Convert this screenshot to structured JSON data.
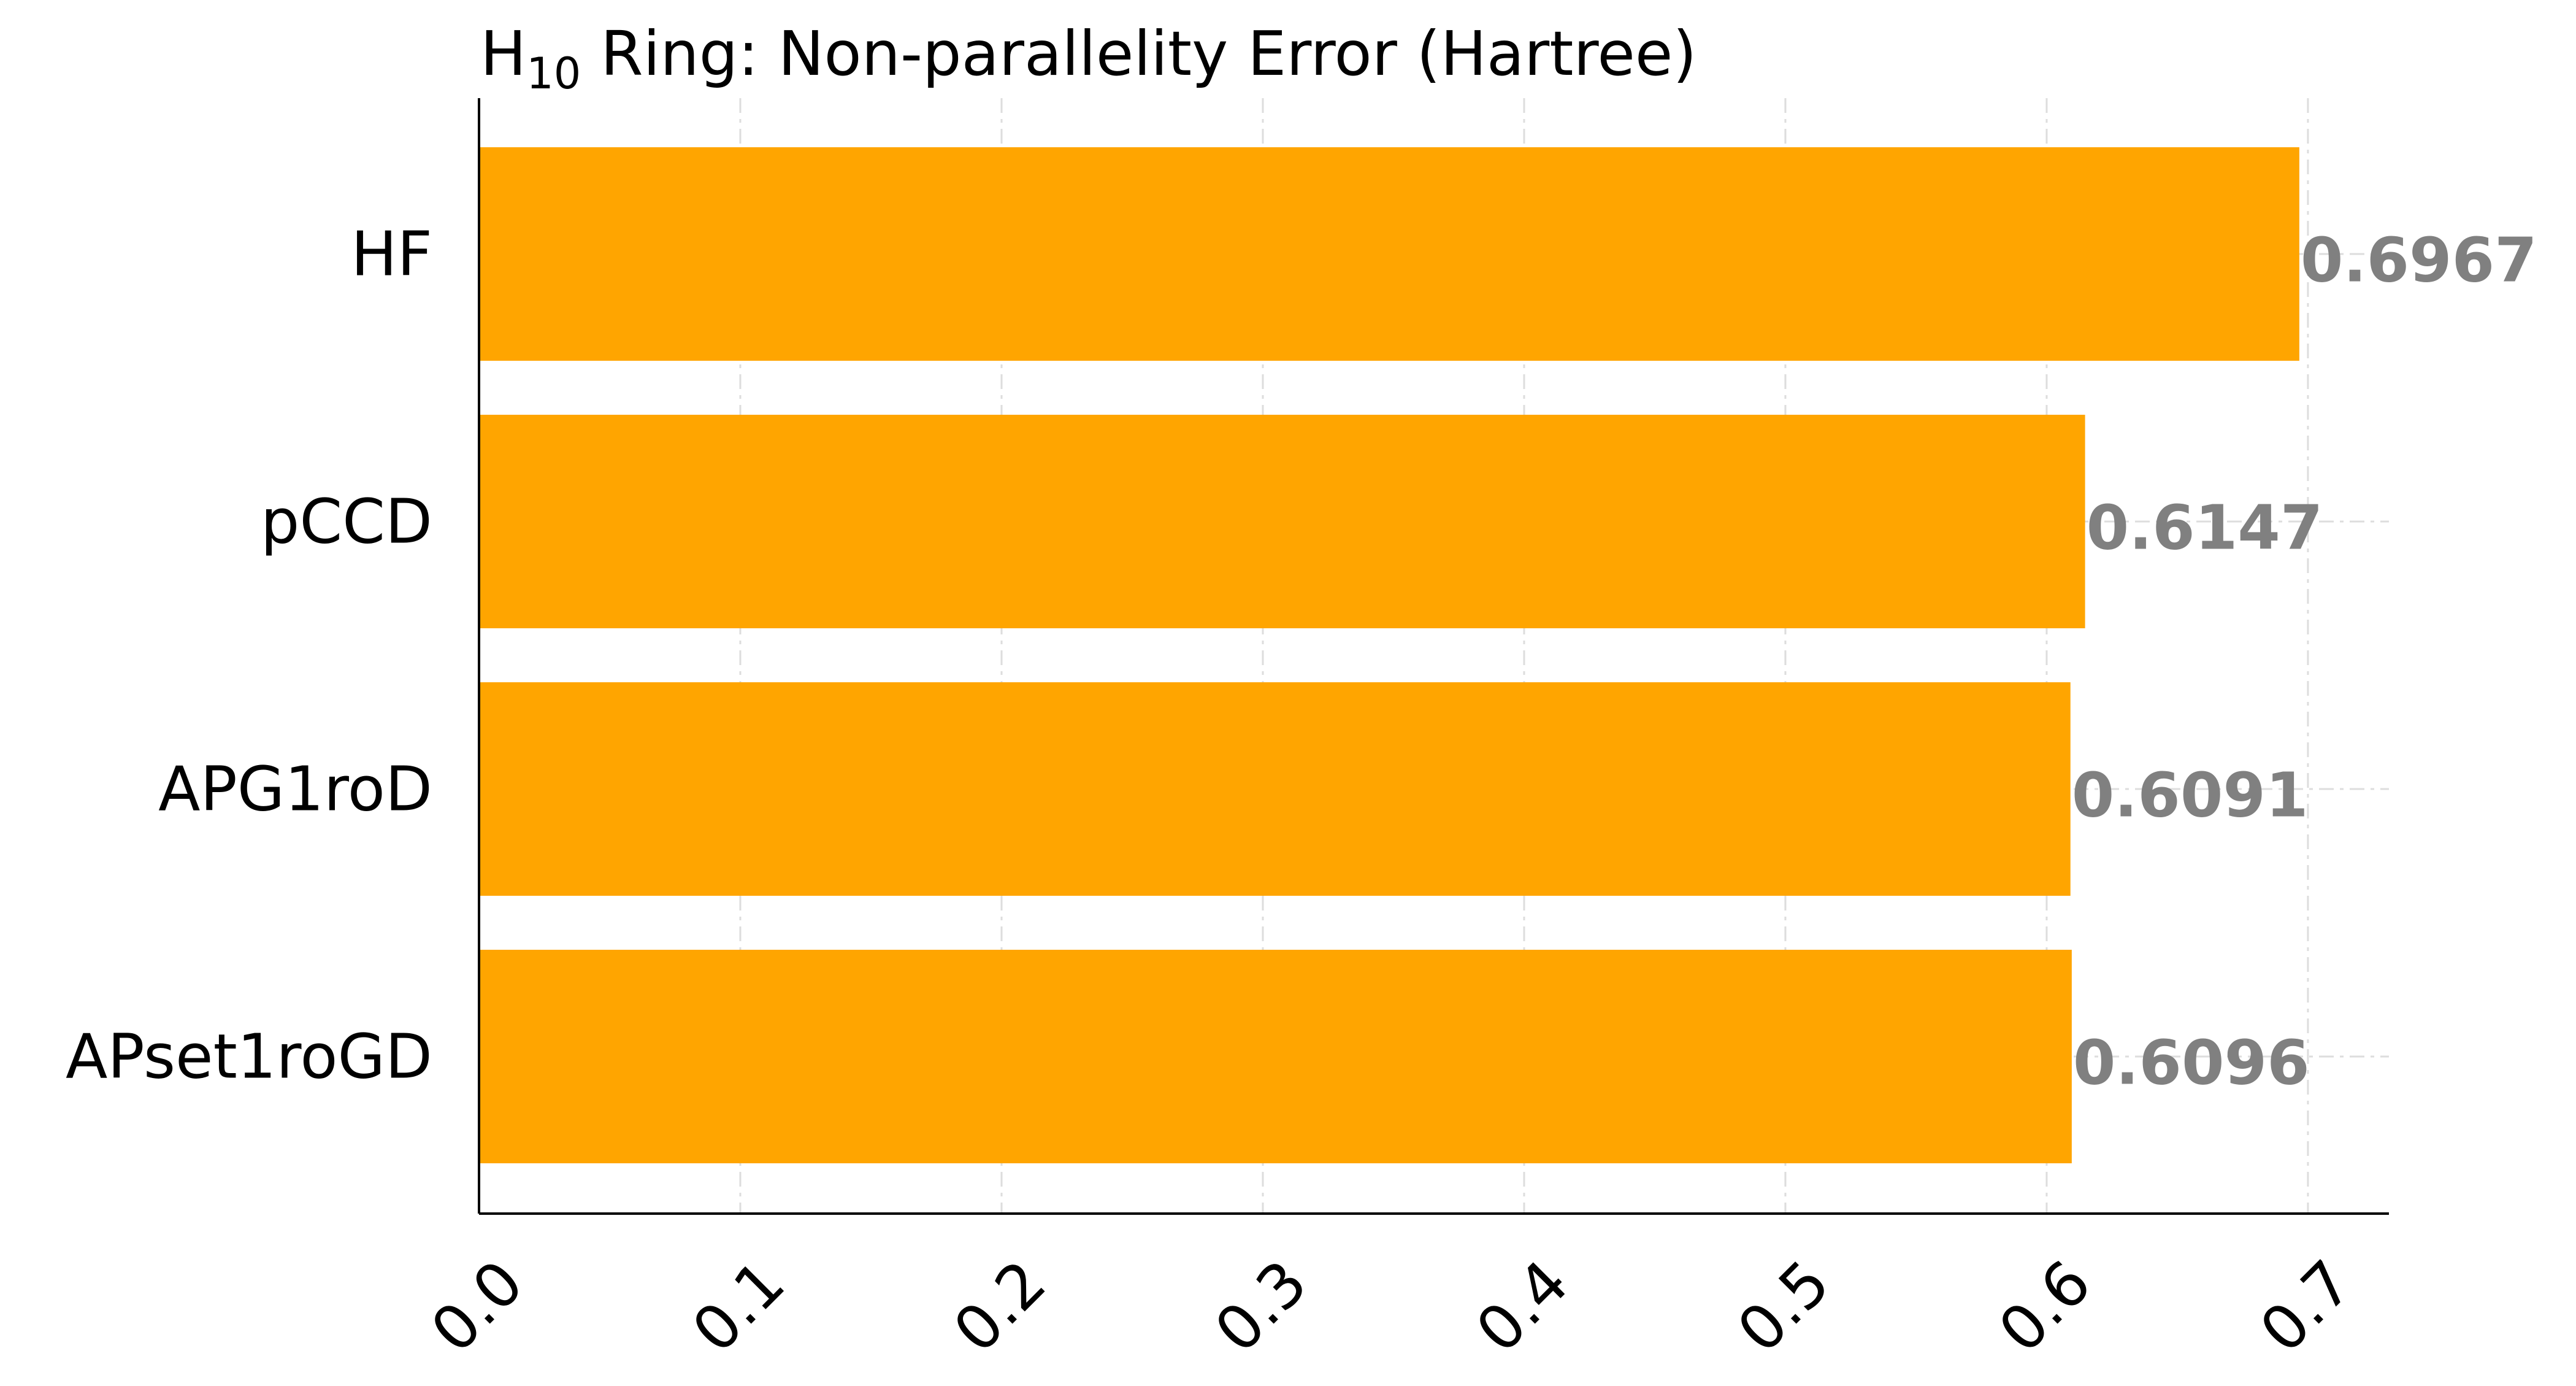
{
  "chart_data": {
    "type": "bar",
    "orientation": "horizontal",
    "title": {
      "main": "H",
      "subscript": "10",
      "rest": " Ring: Non-parallelity Error (Hartree)"
    },
    "categories": [
      "HF",
      "pCCD",
      "APG1roD",
      "APset1roGD"
    ],
    "values": [
      0.6967,
      0.6147,
      0.6091,
      0.6096
    ],
    "value_labels": [
      "0.6967",
      "0.6147",
      "0.6091",
      "0.6096"
    ],
    "xticks": [
      "0.0",
      "0.1",
      "0.2",
      "0.3",
      "0.4",
      "0.5",
      "0.6",
      "0.7"
    ],
    "xlim": [
      0,
      0.731
    ],
    "xlabel": "",
    "ylabel": "",
    "grid": true,
    "bar_color": "#FFA500",
    "value_label_color": "#808080"
  }
}
